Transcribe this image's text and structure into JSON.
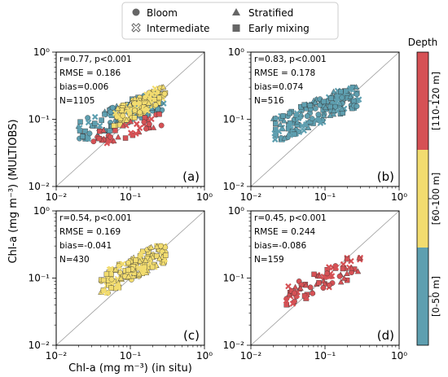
{
  "legend": {
    "items": [
      {
        "label": "Bloom",
        "marker": "circle"
      },
      {
        "label": "Stratified",
        "marker": "triangle"
      },
      {
        "label": "Intermediate",
        "marker": "x-hatched"
      },
      {
        "label": "Early mixing",
        "marker": "square"
      }
    ]
  },
  "axes_text": {
    "ylabel": "Chl-a (mg m⁻³) (MULTIOBS)",
    "xlabel": "Chl-a (mg m⁻³) (in situ)"
  },
  "colorbar": {
    "title": "Depth",
    "bands": [
      {
        "label": "[110-120 m]",
        "color": "#d65155"
      },
      {
        "label": "[60-100 m]",
        "color": "#f2dc6f"
      },
      {
        "label": "[0-50 m]",
        "color": "#5e9fb0"
      }
    ]
  },
  "chart_data": [
    {
      "type": "scatter",
      "panel": "(a)",
      "xscale": "log",
      "yscale": "log",
      "xlim": [
        0.01,
        1
      ],
      "ylim": [
        0.01,
        1
      ],
      "xticks": [
        "10⁻²",
        "10⁻¹",
        "10⁰"
      ],
      "yticks": [
        "10⁰",
        "10⁻¹",
        "10⁻²"
      ],
      "stats": [
        "r=0.77, p<0.001",
        "RMSE = 0.186",
        "bias=0.006",
        "N=1105"
      ],
      "clusters": [
        {
          "depth": "[0-50 m]",
          "color": "#5e9fb0",
          "xrange": [
            0.02,
            0.3
          ],
          "yrange": [
            0.05,
            0.25
          ],
          "n": 110
        },
        {
          "depth": "[60-100 m]",
          "color": "#f2dc6f",
          "xrange": [
            0.06,
            0.3
          ],
          "yrange": [
            0.08,
            0.3
          ],
          "n": 110
        },
        {
          "depth": "[110-120 m]",
          "color": "#d65155",
          "xrange": [
            0.03,
            0.3
          ],
          "yrange": [
            0.04,
            0.12
          ],
          "n": 40
        }
      ]
    },
    {
      "type": "scatter",
      "panel": "(b)",
      "xscale": "log",
      "yscale": "log",
      "xlim": [
        0.01,
        1
      ],
      "ylim": [
        0.01,
        1
      ],
      "xticks": [
        "10⁻²",
        "10⁻¹",
        "10⁰"
      ],
      "yticks": [
        "10⁰",
        "10⁻¹",
        "10⁻²"
      ],
      "stats": [
        "r=0.83, p<0.001",
        "RMSE = 0.178",
        "bias=0.074",
        "N=516"
      ],
      "clusters": [
        {
          "depth": "[0-50 m]",
          "color": "#5e9fb0",
          "xrange": [
            0.02,
            0.3
          ],
          "yrange": [
            0.05,
            0.3
          ],
          "n": 170
        }
      ]
    },
    {
      "type": "scatter",
      "panel": "(c)",
      "xscale": "log",
      "yscale": "log",
      "xlim": [
        0.01,
        1
      ],
      "ylim": [
        0.01,
        1
      ],
      "xticks": [
        "10⁻²",
        "10⁻¹",
        "10⁰"
      ],
      "yticks": [
        "10⁰",
        "10⁻¹",
        "10⁻²"
      ],
      "stats": [
        "r=0.54, p<0.001",
        "RMSE = 0.169",
        "bias=-0.041",
        "N=430"
      ],
      "clusters": [
        {
          "depth": "[60-100 m]",
          "color": "#f2dc6f",
          "xrange": [
            0.04,
            0.3
          ],
          "yrange": [
            0.06,
            0.3
          ],
          "n": 150
        }
      ]
    },
    {
      "type": "scatter",
      "panel": "(d)",
      "xscale": "log",
      "yscale": "log",
      "xlim": [
        0.01,
        1
      ],
      "ylim": [
        0.01,
        1
      ],
      "xticks": [
        "10⁻²",
        "10⁻¹",
        "10⁰"
      ],
      "yticks": [
        "10⁰",
        "10⁻¹",
        "10⁻²"
      ],
      "stats": [
        "r=0.45, p<0.001",
        "RMSE = 0.244",
        "bias=-0.086",
        "N=159"
      ],
      "clusters": [
        {
          "depth": "[110-120 m]",
          "color": "#d65155",
          "xrange": [
            0.03,
            0.3
          ],
          "yrange": [
            0.04,
            0.2
          ],
          "n": 80
        }
      ]
    }
  ]
}
